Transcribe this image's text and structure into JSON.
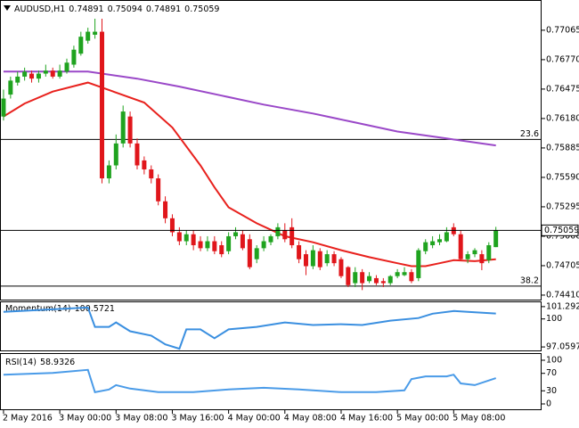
{
  "chart_data": [
    {
      "type": "candlestick",
      "title": "AUDUSD,H1",
      "up_color": "#1fa31f",
      "down_color": "#e0161b",
      "xlim": [
        -0.5,
        76.5
      ],
      "ylim": [
        0.74356,
        0.77359
      ],
      "yticks": [
        0.77065,
        {
          "value": 0.7677,
          "label": "0.76770"
        },
        0.76475,
        {
          "value": 0.7618,
          "label": "0.76180"
        },
        0.75885,
        {
          "value": 0.7559,
          "label": "0.75590"
        },
        0.75295,
        {
          "value": 0.75,
          "label": "0.75000"
        },
        0.74705,
        {
          "value": 0.7441,
          "label": "0.74410"
        }
      ],
      "open": [
        0.762,
        0.7642,
        0.7654,
        0.766,
        0.7663,
        0.7658,
        0.7663,
        0.7666,
        0.766,
        0.7665,
        0.7672,
        0.7683,
        0.7696,
        0.7702,
        0.7705,
        0.7558,
        0.7571,
        0.7593,
        0.762,
        0.7593,
        0.7576,
        0.7567,
        0.7558,
        0.7535,
        0.7518,
        0.7504,
        0.7495,
        0.7502,
        0.7495,
        0.7488,
        0.7495,
        0.7491,
        0.7485,
        0.75,
        0.7502,
        0.7497,
        0.7477,
        0.7488,
        0.7494,
        0.75,
        0.7506,
        0.7509,
        0.7491,
        0.7482,
        0.747,
        0.7485,
        0.7473,
        0.7482,
        0.7477,
        0.7469,
        0.7453,
        0.7464,
        0.7455,
        0.7458,
        0.7455,
        0.7453,
        0.746,
        0.7461,
        0.7464,
        0.7458,
        0.7485,
        0.7491,
        0.7494,
        0.7495,
        0.7509,
        0.7502,
        0.7477,
        0.7482,
        0.7482,
        0.7476,
        0.74891
      ],
      "high": [
        0.7647,
        0.766,
        0.7665,
        0.7669,
        0.7666,
        0.7666,
        0.7672,
        0.7669,
        0.7672,
        0.7678,
        0.7691,
        0.7705,
        0.7709,
        0.7718,
        0.7718,
        0.7576,
        0.7602,
        0.7631,
        0.7625,
        0.7598,
        0.758,
        0.7571,
        0.7562,
        0.754,
        0.7522,
        0.7509,
        0.7506,
        0.7506,
        0.75,
        0.75,
        0.75,
        0.7495,
        0.7504,
        0.7509,
        0.7506,
        0.7502,
        0.7491,
        0.75,
        0.7502,
        0.7513,
        0.7513,
        0.7518,
        0.7495,
        0.7486,
        0.7491,
        0.7488,
        0.7486,
        0.7485,
        0.7479,
        0.747,
        0.7469,
        0.7467,
        0.7464,
        0.7461,
        0.7458,
        0.7461,
        0.7467,
        0.7469,
        0.7467,
        0.7488,
        0.7497,
        0.75,
        0.7502,
        0.7509,
        0.7513,
        0.7506,
        0.7485,
        0.7488,
        0.7486,
        0.7494,
        0.75094
      ],
      "low": [
        0.7616,
        0.7638,
        0.7651,
        0.7656,
        0.7654,
        0.7654,
        0.766,
        0.7658,
        0.7658,
        0.7663,
        0.7669,
        0.7681,
        0.7693,
        0.7698,
        0.7553,
        0.7553,
        0.7567,
        0.7589,
        0.7589,
        0.7567,
        0.7562,
        0.7553,
        0.7531,
        0.7513,
        0.75,
        0.7491,
        0.7491,
        0.7486,
        0.7485,
        0.7485,
        0.7482,
        0.7479,
        0.7482,
        0.7497,
        0.7486,
        0.7467,
        0.7473,
        0.7485,
        0.7491,
        0.7497,
        0.7494,
        0.7488,
        0.7473,
        0.7461,
        0.7467,
        0.7466,
        0.747,
        0.747,
        0.7458,
        0.7449,
        0.7449,
        0.7446,
        0.7453,
        0.7451,
        0.7449,
        0.7451,
        0.7458,
        0.746,
        0.7453,
        0.7455,
        0.7482,
        0.7488,
        0.7491,
        0.7494,
        0.75,
        0.7476,
        0.7473,
        0.7479,
        0.7466,
        0.7473,
        0.74891
      ],
      "close": [
        0.7638,
        0.7656,
        0.766,
        0.7665,
        0.7658,
        0.7663,
        0.7666,
        0.766,
        0.7666,
        0.7674,
        0.7687,
        0.77,
        0.7705,
        0.7705,
        0.7558,
        0.7571,
        0.7593,
        0.7625,
        0.7593,
        0.7571,
        0.7567,
        0.7558,
        0.7535,
        0.7518,
        0.7504,
        0.7495,
        0.7502,
        0.7491,
        0.7488,
        0.7495,
        0.7485,
        0.7482,
        0.75,
        0.7504,
        0.7488,
        0.7469,
        0.7488,
        0.7495,
        0.75,
        0.7509,
        0.7497,
        0.7491,
        0.7477,
        0.747,
        0.7486,
        0.7469,
        0.7482,
        0.7473,
        0.746,
        0.7451,
        0.7464,
        0.7453,
        0.746,
        0.7453,
        0.7453,
        0.746,
        0.7464,
        0.7464,
        0.7455,
        0.7486,
        0.7494,
        0.7495,
        0.7497,
        0.7504,
        0.7502,
        0.7477,
        0.7482,
        0.7486,
        0.7473,
        0.7491,
        0.75059
      ],
      "series": [
        {
          "color": "#e8211d",
          "x": [
            0,
            3,
            7,
            12,
            16,
            20,
            24,
            28,
            30,
            32,
            36,
            40,
            44,
            48,
            52,
            56,
            58,
            60,
            62,
            64,
            67,
            70
          ],
          "values": [
            0.762,
            0.7633,
            0.7645,
            0.7654,
            0.7644,
            0.7634,
            0.7609,
            0.7571,
            0.7549,
            0.7529,
            0.7513,
            0.75,
            0.7494,
            0.7486,
            0.7479,
            0.7473,
            0.747,
            0.747,
            0.7473,
            0.7476,
            0.7475,
            0.7477
          ]
        },
        {
          "color": "#9a48c8",
          "x": [
            0,
            12,
            19,
            25,
            31,
            37,
            44,
            50,
            56,
            63,
            70
          ],
          "values": [
            0.7665,
            0.7665,
            0.7658,
            0.765,
            0.7641,
            0.7632,
            0.7623,
            0.7614,
            0.7605,
            0.7598,
            0.7591
          ]
        }
      ],
      "levels": [
        {
          "label": "23.6",
          "value": 0.7597
        },
        {
          "label": "38.2",
          "value": 0.745
        }
      ]
    },
    {
      "type": "line",
      "title": "Momentum(14)",
      "color": "#3a8fe0",
      "xlim": [
        -0.5,
        76.5
      ],
      "ylim": [
        96.6,
        101.75
      ],
      "yticks": [
        101.2921,
        100,
        97.0597
      ],
      "x": [
        0,
        7,
        12,
        13,
        15,
        16,
        18,
        21,
        23,
        25,
        26,
        28,
        30,
        32,
        36,
        40,
        44,
        48,
        51,
        55,
        59,
        61,
        64,
        66,
        70
      ],
      "values": [
        100.74,
        101.01,
        101.2,
        99.17,
        99.17,
        99.63,
        98.71,
        98.25,
        97.33,
        96.87,
        98.9,
        98.9,
        97.98,
        98.9,
        99.17,
        99.63,
        99.36,
        99.45,
        99.36,
        99.82,
        100.09,
        100.55,
        100.83,
        100.74,
        100.5721
      ]
    },
    {
      "type": "line",
      "title": "RSI(14)",
      "color": "#4a9be8",
      "xlim": [
        -0.5,
        76.5
      ],
      "ylim": [
        -14.3,
        114.3
      ],
      "yticks": [
        100,
        70,
        30,
        0
      ],
      "x": [
        0,
        7,
        12,
        13,
        15,
        16,
        18,
        22,
        27,
        32,
        37,
        42,
        48,
        53,
        57,
        58,
        60,
        63,
        64,
        65,
        67,
        70
      ],
      "values": [
        67,
        71,
        78,
        27,
        33,
        43,
        35,
        27,
        27,
        33,
        37,
        33,
        27,
        27,
        31,
        57,
        63,
        63,
        67,
        47,
        43,
        58.9326
      ],
      "xticks": [
        {
          "value": 0,
          "label": "2 May 2016"
        },
        {
          "value": 8,
          "label": "3 May 00:00"
        },
        {
          "value": 16,
          "label": "3 May 08:00"
        },
        {
          "value": 24,
          "label": "3 May 16:00"
        },
        {
          "value": 32,
          "label": "4 May 00:00"
        },
        {
          "value": 40,
          "label": "4 May 08:00"
        },
        {
          "value": 48,
          "label": "4 May 16:00"
        },
        {
          "value": 56,
          "label": "5 May 00:00"
        },
        {
          "value": 64,
          "label": "5 May 08:00"
        }
      ]
    }
  ]
}
